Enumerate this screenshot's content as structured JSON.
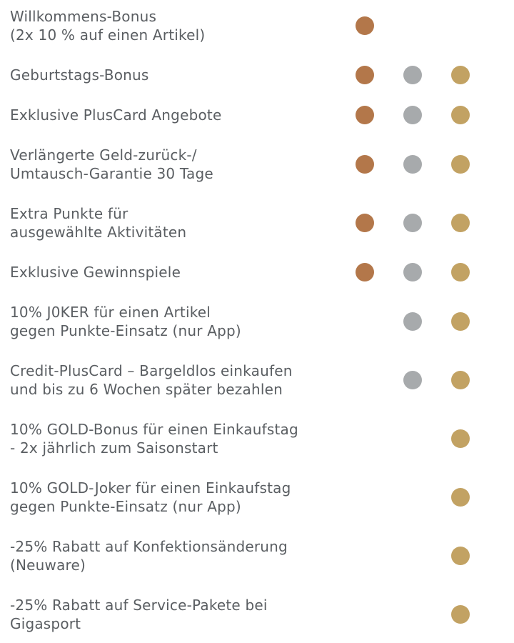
{
  "tier_colors": {
    "bronze": "#b3774a",
    "silver": "#a7aaac",
    "gold": "#c2a263"
  },
  "tiers_order": [
    "bronze",
    "silver",
    "gold"
  ],
  "rows": [
    {
      "lines": [
        "Willkommens-Bonus",
        "(2x 10 % auf einen Artikel)"
      ],
      "tiers": {
        "bronze": true,
        "silver": false,
        "gold": false
      }
    },
    {
      "lines": [
        "Geburtstags-Bonus"
      ],
      "tiers": {
        "bronze": true,
        "silver": true,
        "gold": true
      }
    },
    {
      "lines": [
        "Exklusive PlusCard Angebote"
      ],
      "tiers": {
        "bronze": true,
        "silver": true,
        "gold": true
      }
    },
    {
      "lines": [
        "Verlängerte Geld-zurück-/",
        "Umtausch-Garantie 30 Tage"
      ],
      "tiers": {
        "bronze": true,
        "silver": true,
        "gold": true
      }
    },
    {
      "lines": [
        "Extra Punkte für",
        "ausgewählte Aktivitäten"
      ],
      "tiers": {
        "bronze": true,
        "silver": true,
        "gold": true
      }
    },
    {
      "lines": [
        "Exklusive Gewinnspiele"
      ],
      "tiers": {
        "bronze": true,
        "silver": true,
        "gold": true
      }
    },
    {
      "lines": [
        "10% J0KER für einen Artikel",
        "gegen Punkte-Einsatz (nur App)"
      ],
      "tiers": {
        "bronze": false,
        "silver": true,
        "gold": true
      }
    },
    {
      "lines": [
        "Credit-PlusCard – Bargeldlos einkaufen",
        "und bis zu 6 Wochen später bezahlen"
      ],
      "tiers": {
        "bronze": false,
        "silver": true,
        "gold": true
      }
    },
    {
      "lines": [
        "10% GOLD-Bonus für einen Einkaufstag",
        "-  2x jährlich zum Saisonstart"
      ],
      "tiers": {
        "bronze": false,
        "silver": false,
        "gold": true
      }
    },
    {
      "lines": [
        "10% GOLD-Joker für einen Einkaufstag",
        "gegen Punkte-Einsatz (nur App)"
      ],
      "tiers": {
        "bronze": false,
        "silver": false,
        "gold": true
      }
    },
    {
      "lines": [
        "-25% Rabatt auf Konfektionsänderung",
        "(Neuware)"
      ],
      "tiers": {
        "bronze": false,
        "silver": false,
        "gold": true
      }
    },
    {
      "lines": [
        "-25% Rabatt auf Service-Pakete bei",
        "Gigasport"
      ],
      "tiers": {
        "bronze": false,
        "silver": false,
        "gold": true
      }
    }
  ]
}
